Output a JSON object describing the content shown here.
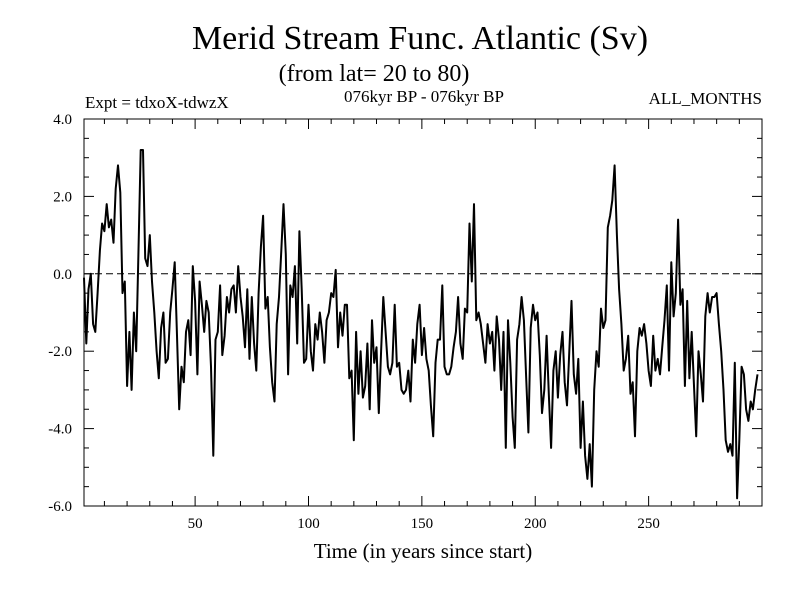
{
  "chart_data": {
    "type": "line",
    "title": "Merid Stream Func. Atlantic (Sv)",
    "subtitle": "(from lat= 20 to 80)",
    "left_label": "Expt = tdxoX-tdwzX",
    "center_label": "076kyr BP - 076kyr BP",
    "right_label": "ALL_MONTHS",
    "xlabel": "Time (in years since start)",
    "ylabel": "",
    "xlim": [
      1,
      300
    ],
    "ylim": [
      -6.0,
      4.0
    ],
    "x_ticks": [
      50,
      100,
      150,
      200,
      250
    ],
    "x_tick_labels": [
      "50",
      "100",
      "150",
      "200",
      "250"
    ],
    "y_ticks": [
      -6.0,
      -4.0,
      -2.0,
      0.0,
      2.0,
      4.0
    ],
    "y_tick_labels": [
      "-6.0",
      "-4.0",
      "-2.0",
      "0.0",
      "2.0",
      "4.0"
    ],
    "reference_line": {
      "y": 0.0,
      "style": "dashed"
    },
    "grid": false,
    "series": [
      {
        "x_start": 1,
        "x_step": 1,
        "values": [
          -0.1,
          -1.8,
          -0.4,
          0.0,
          -1.3,
          -1.5,
          -0.5,
          0.6,
          1.3,
          1.1,
          1.8,
          1.2,
          1.4,
          0.8,
          2.2,
          2.8,
          2.1,
          -0.5,
          -0.2,
          -2.9,
          -1.5,
          -3.0,
          -1.0,
          -2.0,
          0.5,
          3.2,
          3.2,
          0.4,
          0.2,
          1.0,
          -0.2,
          -1.0,
          -2.0,
          -2.7,
          -1.4,
          -1.0,
          -2.3,
          -2.2,
          -1.0,
          -0.4,
          0.3,
          -1.6,
          -3.5,
          -2.4,
          -2.8,
          -1.5,
          -1.2,
          -2.1,
          0.2,
          -0.7,
          -2.6,
          -0.2,
          -0.8,
          -1.5,
          -0.7,
          -1.0,
          -2.4,
          -4.7,
          -1.7,
          -1.5,
          -0.3,
          -2.1,
          -1.6,
          -0.6,
          -1.0,
          -0.4,
          -0.3,
          -1.0,
          0.2,
          -0.6,
          -1.1,
          -1.9,
          -0.4,
          -2.2,
          -0.6,
          -1.8,
          -2.5,
          -0.5,
          0.7,
          1.5,
          -0.9,
          -0.6,
          -1.9,
          -2.8,
          -3.3,
          -1.3,
          -0.6,
          0.6,
          1.8,
          0.5,
          -2.6,
          -0.3,
          -0.6,
          0.2,
          -1.8,
          1.1,
          -0.4,
          -2.3,
          -2.2,
          -0.8,
          -2.0,
          -2.5,
          -1.3,
          -1.7,
          -1.0,
          -1.5,
          -2.3,
          -1.2,
          -1.0,
          -0.5,
          -0.6,
          0.1,
          -1.9,
          -1.0,
          -1.6,
          -0.8,
          -0.8,
          -2.7,
          -2.5,
          -4.3,
          -1.5,
          -3.1,
          -2.0,
          -3.2,
          -2.9,
          -1.8,
          -3.5,
          -1.2,
          -2.3,
          -1.9,
          -3.6,
          -2.0,
          -0.6,
          -1.5,
          -2.4,
          -2.6,
          -2.3,
          -0.8,
          -2.4,
          -2.3,
          -3.0,
          -3.1,
          -3.0,
          -2.5,
          -3.3,
          -1.7,
          -2.3,
          -1.3,
          -0.8,
          -2.1,
          -1.4,
          -2.2,
          -2.5,
          -3.4,
          -4.2,
          -2.3,
          -1.7,
          -1.7,
          -0.3,
          -2.4,
          -2.6,
          -2.6,
          -2.4,
          -1.9,
          -1.5,
          -0.6,
          -1.8,
          -2.2,
          -0.9,
          -1.0,
          1.3,
          -0.2,
          1.8,
          -1.2,
          -1.0,
          -1.3,
          -1.8,
          -2.3,
          -1.3,
          -1.8,
          -1.5,
          -2.5,
          -1.1,
          -1.7,
          -3.0,
          -1.5,
          -4.5,
          -1.2,
          -2.3,
          -3.7,
          -4.5,
          -1.7,
          -1.3,
          -0.6,
          -1.2,
          -2.7,
          -4.1,
          -1.4,
          -0.8,
          -1.2,
          -1.0,
          -2.1,
          -3.6,
          -3.0,
          -1.6,
          -3.1,
          -4.5,
          -2.5,
          -2.0,
          -3.2,
          -2.1,
          -1.5,
          -2.8,
          -3.4,
          -2.0,
          -0.7,
          -2.6,
          -3.1,
          -2.2,
          -4.5,
          -3.3,
          -4.7,
          -5.3,
          -4.4,
          -5.5,
          -3.0,
          -2.0,
          -2.4,
          -0.9,
          -1.4,
          -1.2,
          1.2,
          1.5,
          1.9,
          2.8,
          1.0,
          -0.4,
          -1.3,
          -2.5,
          -2.2,
          -1.6,
          -3.1,
          -2.8,
          -4.2,
          -2.0,
          -1.4,
          -1.6,
          -1.3,
          -1.8,
          -2.5,
          -2.9,
          -1.6,
          -2.5,
          -2.2,
          -2.6,
          -1.9,
          -1.2,
          -0.3,
          -2.5,
          0.3,
          -1.1,
          -0.5,
          1.4,
          -0.8,
          -0.4,
          -2.9,
          -0.7,
          -2.7,
          -1.5,
          -2.9,
          -4.2,
          -2.0,
          -2.6,
          -3.3,
          -1.1,
          -0.5,
          -1.0,
          -0.6,
          -0.6,
          -0.5,
          -1.3,
          -2.0,
          -3.0,
          -4.3,
          -4.6,
          -4.4,
          -4.7,
          -2.3,
          -5.8,
          -4.3,
          -2.4,
          -2.6,
          -3.5,
          -3.8,
          -3.3,
          -3.5,
          -3.0,
          -2.6
        ]
      }
    ]
  }
}
